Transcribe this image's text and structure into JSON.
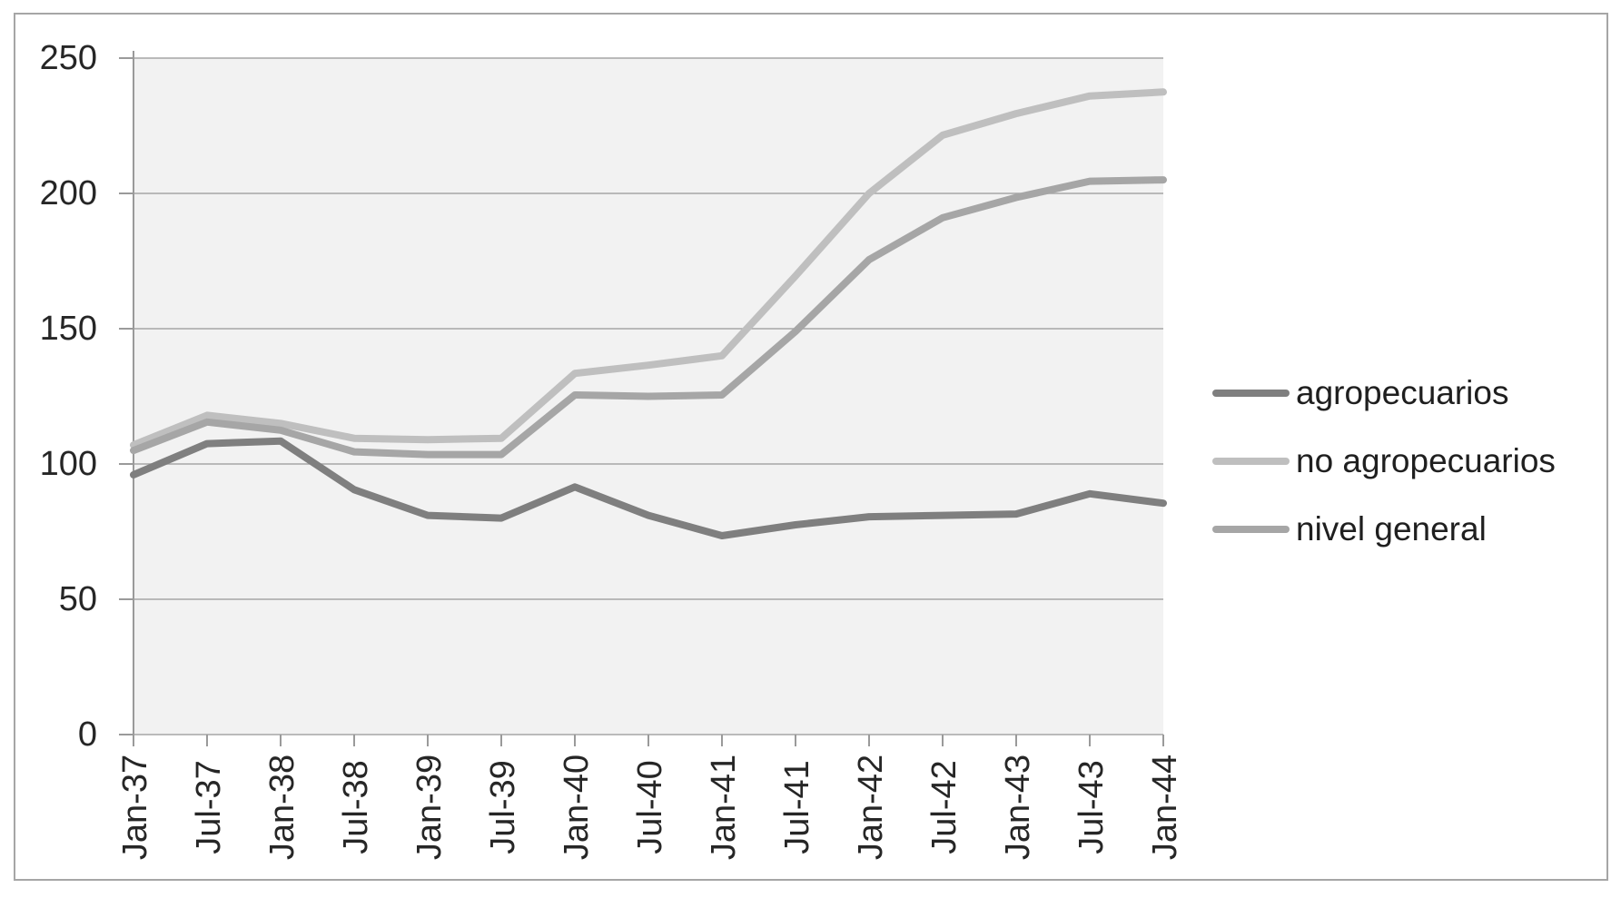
{
  "chart_data": {
    "type": "line",
    "title": "",
    "xlabel": "",
    "ylabel": "",
    "categories": [
      "Jan-37",
      "Jul-37",
      "Jan-38",
      "Jul-38",
      "Jan-39",
      "Jul-39",
      "Jan-40",
      "Jul-40",
      "Jan-41",
      "Jul-41",
      "Jan-42",
      "Jul-42",
      "Jan-43",
      "Jul-43",
      "Jan-44"
    ],
    "series": [
      {
        "name": "agropecuarios",
        "color": "#7f7f7f",
        "values": [
          96,
          107.5,
          108.5,
          90.5,
          81,
          80,
          91.5,
          81,
          73.5,
          77.5,
          80.5,
          81,
          81.5,
          89,
          85.5
        ]
      },
      {
        "name": "no agropecuarios",
        "color": "#bfbfbf",
        "values": [
          107,
          118,
          115,
          109.5,
          109,
          109.5,
          133.5,
          136.5,
          140,
          169.5,
          200,
          221.5,
          229.5,
          236,
          237.5
        ]
      },
      {
        "name": "nivel general",
        "color": "#a6a6a6",
        "values": [
          105,
          115.5,
          112.5,
          104.5,
          103.5,
          103.5,
          125.5,
          125,
          125.5,
          149,
          175.5,
          191,
          198.5,
          204.5,
          205
        ]
      }
    ],
    "ylim": [
      0,
      250
    ],
    "yticks": [
      0,
      50,
      100,
      150,
      200,
      250
    ],
    "grid": true,
    "legend_position": "right",
    "plot_background": "#f2f2f2",
    "gridline_color": "#a6a6a6",
    "axis_color": "#9a9a9a",
    "text_color": "#262626"
  }
}
